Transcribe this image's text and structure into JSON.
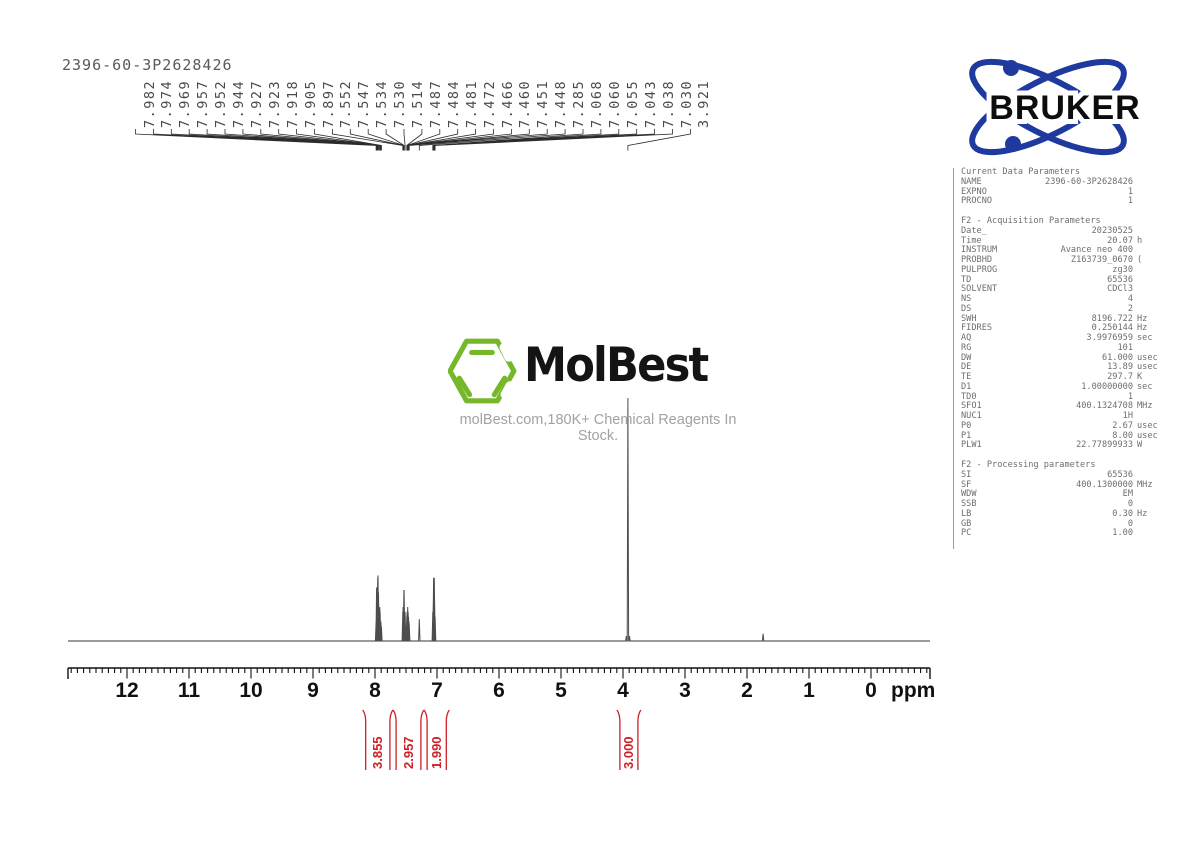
{
  "title": "2396-60-3P2628426",
  "bruker_logo": {
    "text": "BRUKER",
    "blue": "#1e3a9f"
  },
  "molbest_logo": {
    "name": "MolBest",
    "tagline": "molBest.com,180K+ Chemical Reagents In Stock.",
    "green": "#76b82a"
  },
  "params_panel": {
    "sections": [
      {
        "header": "Current Data Parameters",
        "rows": [
          [
            "NAME",
            "2396-60-3P2628426",
            ""
          ],
          [
            "EXPNO",
            "1",
            ""
          ],
          [
            "PROCNO",
            "1",
            ""
          ]
        ]
      },
      {
        "header": "F2 - Acquisition Parameters",
        "rows": [
          [
            "Date_",
            "20230525",
            ""
          ],
          [
            "Time",
            "20.07",
            "h"
          ],
          [
            "INSTRUM",
            "Avance neo 400",
            ""
          ],
          [
            "PROBHD",
            "Z163739_0670",
            "("
          ],
          [
            "PULPROG",
            "zg30",
            ""
          ],
          [
            "TD",
            "65536",
            ""
          ],
          [
            "SOLVENT",
            "CDCl3",
            ""
          ],
          [
            "NS",
            "4",
            ""
          ],
          [
            "DS",
            "2",
            ""
          ],
          [
            "SWH",
            "8196.722",
            "Hz"
          ],
          [
            "FIDRES",
            "0.250144",
            "Hz"
          ],
          [
            "AQ",
            "3.9976959",
            "sec"
          ],
          [
            "RG",
            "101",
            ""
          ],
          [
            "DW",
            "61.000",
            "usec"
          ],
          [
            "DE",
            "13.89",
            "usec"
          ],
          [
            "TE",
            "297.7",
            "K"
          ],
          [
            "D1",
            "1.00000000",
            "sec"
          ],
          [
            "TD0",
            "1",
            ""
          ],
          [
            "SFO1",
            "400.1324708",
            "MHz"
          ],
          [
            "NUC1",
            "1H",
            ""
          ],
          [
            "P0",
            "2.67",
            "usec"
          ],
          [
            "P1",
            "8.00",
            "usec"
          ],
          [
            "PLW1",
            "22.77899933",
            "W"
          ]
        ]
      },
      {
        "header": "F2 - Processing parameters",
        "rows": [
          [
            "SI",
            "65536",
            ""
          ],
          [
            "SF",
            "400.1300000",
            "MHz"
          ],
          [
            "WDW",
            "EM",
            ""
          ],
          [
            "SSB",
            "0",
            ""
          ],
          [
            "LB",
            "0.30",
            "Hz"
          ],
          [
            "GB",
            "0",
            ""
          ],
          [
            "PC",
            "1.00",
            ""
          ]
        ]
      }
    ]
  },
  "chart_data": {
    "type": "line",
    "title": "1H NMR spectrum",
    "xlabel": "ppm",
    "x_axis": {
      "major_ticks": [
        "12",
        "11",
        "10",
        "9",
        "8",
        "7",
        "6",
        "5",
        "4",
        "3",
        "2",
        "1",
        "0"
      ],
      "unit_label": "ppm",
      "minor_step": 0.1,
      "left_ppm": 12.95,
      "right_ppm": -0.95
    },
    "peak_labels": [
      "7.982",
      "7.974",
      "7.969",
      "7.957",
      "7.952",
      "7.944",
      "7.927",
      "7.923",
      "7.918",
      "7.905",
      "7.897",
      "7.552",
      "7.547",
      "7.534",
      "7.530",
      "7.514",
      "7.487",
      "7.484",
      "7.481",
      "7.472",
      "7.466",
      "7.460",
      "7.451",
      "7.448",
      "7.285",
      "7.068",
      "7.060",
      "7.055",
      "7.043",
      "7.038",
      "7.030",
      "3.921"
    ],
    "peaks": [
      {
        "ppm": 7.982,
        "intensity": 8
      },
      {
        "ppm": 7.974,
        "intensity": 22
      },
      {
        "ppm": 7.969,
        "intensity": 18
      },
      {
        "ppm": 7.957,
        "intensity": 26
      },
      {
        "ppm": 7.952,
        "intensity": 27
      },
      {
        "ppm": 7.944,
        "intensity": 20
      },
      {
        "ppm": 7.927,
        "intensity": 13
      },
      {
        "ppm": 7.923,
        "intensity": 14
      },
      {
        "ppm": 7.918,
        "intensity": 12
      },
      {
        "ppm": 7.905,
        "intensity": 8
      },
      {
        "ppm": 7.897,
        "intensity": 6
      },
      {
        "ppm": 7.552,
        "intensity": 12
      },
      {
        "ppm": 7.547,
        "intensity": 14
      },
      {
        "ppm": 7.534,
        "intensity": 21
      },
      {
        "ppm": 7.53,
        "intensity": 21
      },
      {
        "ppm": 7.514,
        "intensity": 12
      },
      {
        "ppm": 7.487,
        "intensity": 10
      },
      {
        "ppm": 7.484,
        "intensity": 11
      },
      {
        "ppm": 7.481,
        "intensity": 12
      },
      {
        "ppm": 7.472,
        "intensity": 14
      },
      {
        "ppm": 7.466,
        "intensity": 12
      },
      {
        "ppm": 7.46,
        "intensity": 10
      },
      {
        "ppm": 7.451,
        "intensity": 8
      },
      {
        "ppm": 7.448,
        "intensity": 7
      },
      {
        "ppm": 7.285,
        "intensity": 9
      },
      {
        "ppm": 7.068,
        "intensity": 12
      },
      {
        "ppm": 7.06,
        "intensity": 16
      },
      {
        "ppm": 7.055,
        "intensity": 26
      },
      {
        "ppm": 7.043,
        "intensity": 26
      },
      {
        "ppm": 7.038,
        "intensity": 16
      },
      {
        "ppm": 7.03,
        "intensity": 10
      },
      {
        "ppm": 3.947,
        "intensity": 2
      },
      {
        "ppm": 3.921,
        "intensity": 100
      },
      {
        "ppm": 3.895,
        "intensity": 2
      },
      {
        "ppm": 1.74,
        "intensity": 3
      }
    ],
    "integrals": [
      {
        "value": "3.855",
        "from_ppm": 8.15,
        "to_ppm": 7.76
      },
      {
        "value": "2.957",
        "from_ppm": 7.66,
        "to_ppm": 7.26
      },
      {
        "value": "1.990",
        "from_ppm": 7.16,
        "to_ppm": 6.85
      },
      {
        "value": "3.000",
        "from_ppm": 4.05,
        "to_ppm": 3.76
      }
    ],
    "colors": {
      "integral_red": "#cd2027",
      "trace": "#4d4d4d",
      "baseline": "#a8a8a8",
      "axis": "#111111"
    }
  }
}
